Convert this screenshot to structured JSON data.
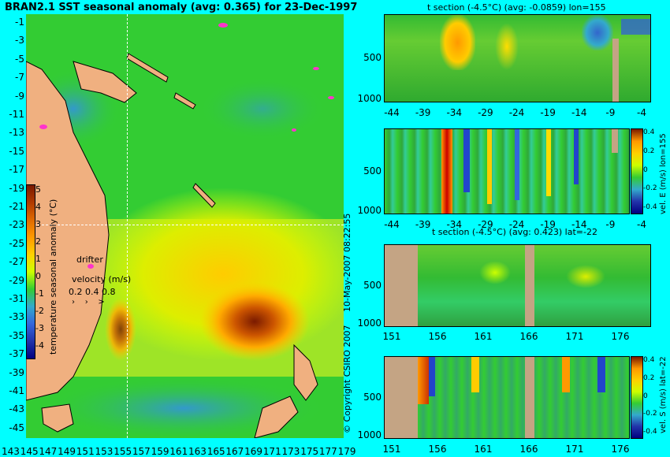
{
  "map": {
    "title": "BRAN2.1 SST seasonal anomaly (avg: 0.365) for 23-Dec-1997",
    "lat_labels": [
      "-1",
      "-3",
      "-5",
      "-7",
      "-9",
      "-11",
      "-13",
      "-15",
      "-17",
      "-19",
      "-21",
      "-23",
      "-25",
      "-27",
      "-29",
      "-31",
      "-33",
      "-35",
      "-37",
      "-39",
      "-41",
      "-43",
      "-45"
    ],
    "lon_labels": [
      "143",
      "145",
      "147",
      "149",
      "151",
      "153",
      "155",
      "157",
      "159",
      "161",
      "163",
      "165",
      "167",
      "169",
      "171",
      "173",
      "175",
      "177",
      "179"
    ],
    "colorbar": {
      "label": "temperature seasonal anomaly (°C)",
      "ticks": [
        "5",
        "4",
        "3",
        "2",
        "1",
        "0",
        "-1",
        "-2",
        "-3",
        "-4"
      ],
      "colors": [
        "#7a1a00",
        "#b03a00",
        "#e06a00",
        "#ff9900",
        "#ffd000",
        "#ccff00",
        "#33cc33",
        "#33aacc",
        "#3366dd",
        "#2233aa",
        "#000080"
      ]
    },
    "drifter_label": "drifter",
    "velocity_label": "velocity (m/s)",
    "velocity_values": "0.2 0.4 0.8",
    "crosshair_lon": "155",
    "crosshair_lat": "-22"
  },
  "panels": {
    "p1": {
      "title": "t section (-4.5°C) (avg: -0.0859) lon=155",
      "y_ticks": [
        "500",
        "1000"
      ],
      "x_ticks": [
        "-44",
        "-39",
        "-34",
        "-29",
        "-24",
        "-19",
        "-14",
        "-9",
        "-4"
      ]
    },
    "p2": {
      "x_ticks": [
        "-44",
        "-39",
        "-34",
        "-29",
        "-24",
        "-19",
        "-14",
        "-9",
        "-4"
      ],
      "y_ticks": [
        "500",
        "1000"
      ],
      "cb_label": "vel. E (m/s) lon=155",
      "cb_ticks": [
        "0.4",
        "0.2",
        "0",
        "-0.2",
        "-0.4"
      ]
    },
    "p3": {
      "title": "t section (-4.5°C) (avg: 0.423) lat=-22",
      "y_ticks": [
        "500",
        "1000"
      ],
      "x_ticks": [
        "151",
        "156",
        "161",
        "166",
        "171",
        "176"
      ]
    },
    "p4": {
      "x_ticks": [
        "151",
        "156",
        "161",
        "166",
        "171",
        "176"
      ],
      "y_ticks": [
        "500",
        "1000"
      ],
      "cb_label": "vel. S (m/s) lat=-22",
      "cb_ticks": [
        "0.4",
        "0.2",
        "0",
        "-0.2",
        "-0.4"
      ]
    }
  },
  "footer": {
    "date_text": "10-May-2007 08:22:55",
    "copyright_text": "© Copyright CSIRO 2007"
  }
}
